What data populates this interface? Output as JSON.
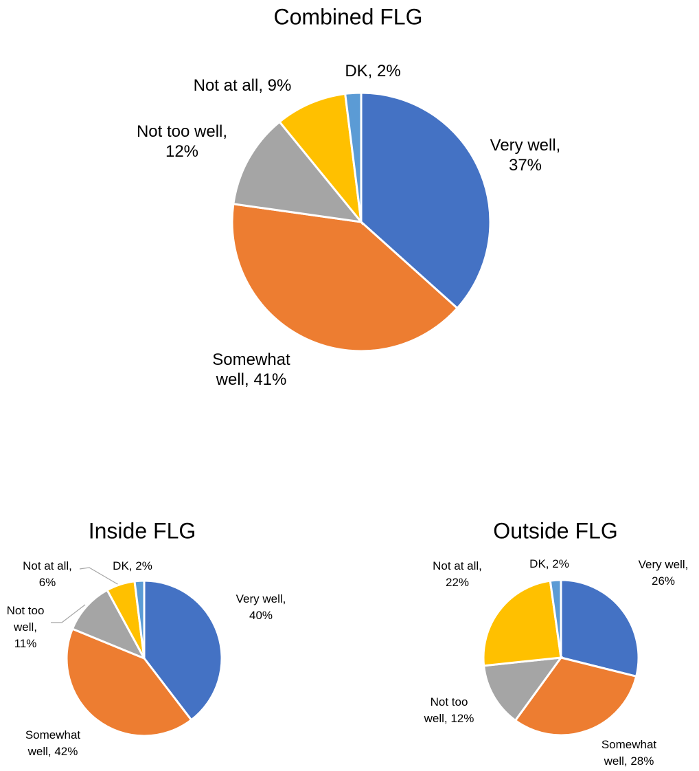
{
  "chart_data": [
    {
      "type": "pie",
      "title": "Combined FLG",
      "values": [
        37,
        41,
        12,
        9,
        2
      ],
      "value_labels": [
        "Very well,\n37%",
        "Somewhat\nwell, 41%",
        "Not too well,\n12%",
        "Not at all, 9%",
        "DK, 2%"
      ],
      "colors": [
        "#4472c4",
        "#ed7d31",
        "#a5a5a5",
        "#ffc000",
        "#5b9bd5"
      ]
    },
    {
      "type": "pie",
      "title": "Inside FLG",
      "values": [
        40,
        42,
        11,
        6,
        2
      ],
      "value_labels": [
        "Very well,\n40%",
        "Somewhat\nwell, 42%",
        "Not too\nwell,\n11%",
        "Not at all,\n6%",
        "DK, 2%"
      ],
      "colors": [
        "#4472c4",
        "#ed7d31",
        "#a5a5a5",
        "#ffc000",
        "#5b9bd5"
      ]
    },
    {
      "type": "pie",
      "title": "Outside FLG",
      "values": [
        26,
        28,
        12,
        22,
        2
      ],
      "value_labels": [
        "Very well,\n26%",
        "Somewhat\nwell, 28%",
        "Not too\nwell, 12%",
        "Not at all,\n22%",
        "DK, 2%"
      ],
      "colors": [
        "#4472c4",
        "#ed7d31",
        "#a5a5a5",
        "#ffc000",
        "#5b9bd5"
      ]
    }
  ]
}
